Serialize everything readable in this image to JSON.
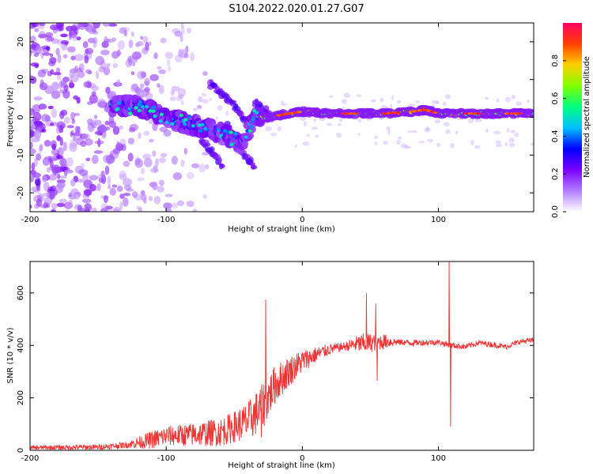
{
  "page": {
    "title": "S104.2022.020.01.27.G07"
  },
  "chart_data": [
    {
      "type": "heatmap",
      "title": "S104.2022.020.01.27.G07",
      "xlabel": "Height of straight line (km)",
      "ylabel": "Frequency (Hz)",
      "xlim": [
        -200,
        170
      ],
      "ylim": [
        -25,
        25
      ],
      "xticks": [
        -200,
        -100,
        0,
        100
      ],
      "yticks": [
        20,
        10,
        0,
        -10,
        -20
      ],
      "grid": false,
      "colorbar": {
        "label": "Normalized spectral amplitude",
        "range": [
          0.0,
          1.0
        ],
        "ticks": [
          "0.0",
          "0.2",
          "0.4",
          "0.6",
          "0.8"
        ],
        "colormap": [
          "#ffffff",
          "#b37cff",
          "#7b00ff",
          "#0000ff",
          "#00bfff",
          "#00ff80",
          "#80ff00",
          "#ffd000",
          "#ff4000",
          "#ff0066"
        ]
      },
      "ridge": {
        "description": "dominant frequency track",
        "points": [
          [
            -140,
            3
          ],
          [
            -120,
            3
          ],
          [
            -100,
            0
          ],
          [
            -80,
            -2
          ],
          [
            -60,
            -4
          ],
          [
            -45,
            -7
          ],
          [
            -35,
            0
          ],
          [
            -25,
            0
          ],
          [
            -10,
            1
          ],
          [
            0,
            1.5
          ],
          [
            20,
            1
          ],
          [
            40,
            1
          ],
          [
            60,
            1
          ],
          [
            80,
            1.5
          ],
          [
            90,
            2
          ],
          [
            100,
            1
          ],
          [
            120,
            1
          ],
          [
            140,
            1
          ],
          [
            170,
            1
          ]
        ]
      },
      "secondary_tracks": [
        {
          "points": [
            [
              -68,
              9
            ],
            [
              -55,
              5
            ],
            [
              -45,
              1
            ],
            [
              -38,
              -3
            ]
          ]
        },
        {
          "points": [
            [
              -55,
              -2
            ],
            [
              -45,
              -9
            ],
            [
              -35,
              -13
            ]
          ]
        },
        {
          "points": [
            [
              -80,
              -3
            ],
            [
              -65,
              -10
            ],
            [
              -58,
              -13
            ]
          ]
        },
        {
          "points": [
            [
              -35,
              4
            ],
            [
              -28,
              2
            ],
            [
              -22,
              0
            ]
          ]
        }
      ],
      "noise_region_x": [
        -200,
        -90
      ]
    },
    {
      "type": "line",
      "xlabel": "Height of straight line (km)",
      "ylabel": "SNR (10 * v/v)",
      "xlim": [
        -200,
        170
      ],
      "ylim": [
        0,
        720
      ],
      "xticks": [
        -200,
        -100,
        0,
        100
      ],
      "yticks": [
        0,
        200,
        400,
        600
      ],
      "grid": false,
      "color": "#ee3333",
      "trend": [
        [
          -200,
          10
        ],
        [
          -150,
          12
        ],
        [
          -130,
          20
        ],
        [
          -110,
          40
        ],
        [
          -100,
          55
        ],
        [
          -80,
          60
        ],
        [
          -60,
          70
        ],
        [
          -40,
          110
        ],
        [
          -30,
          160
        ],
        [
          -20,
          250
        ],
        [
          -10,
          300
        ],
        [
          0,
          340
        ],
        [
          10,
          365
        ],
        [
          20,
          385
        ],
        [
          30,
          395
        ],
        [
          40,
          405
        ],
        [
          50,
          410
        ],
        [
          60,
          415
        ],
        [
          80,
          410
        ],
        [
          100,
          412
        ],
        [
          110,
          400
        ],
        [
          120,
          395
        ],
        [
          130,
          410
        ],
        [
          150,
          395
        ],
        [
          160,
          415
        ],
        [
          170,
          420
        ]
      ],
      "spikes": [
        {
          "x": -27,
          "y": 575
        },
        {
          "x": -30,
          "y": 50
        },
        {
          "x": 47,
          "y": 600
        },
        {
          "x": 54,
          "y": 560
        },
        {
          "x": 55,
          "y": 265
        },
        {
          "x": 108,
          "y": 730
        },
        {
          "x": 109,
          "y": 90
        }
      ],
      "noise_amplitude": [
        [
          -200,
          8
        ],
        [
          -130,
          12
        ],
        [
          -110,
          35
        ],
        [
          -80,
          45
        ],
        [
          -50,
          60
        ],
        [
          -30,
          90
        ],
        [
          -10,
          60
        ],
        [
          10,
          30
        ],
        [
          30,
          15
        ],
        [
          45,
          40
        ],
        [
          60,
          30
        ],
        [
          70,
          12
        ],
        [
          170,
          10
        ]
      ]
    }
  ]
}
